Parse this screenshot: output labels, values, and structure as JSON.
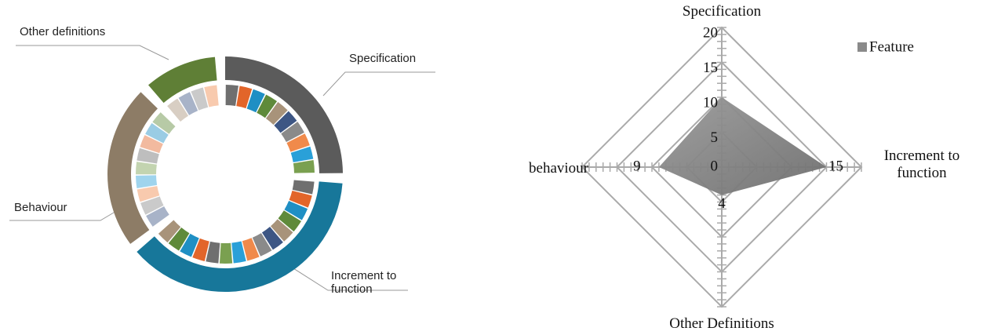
{
  "chart_data": [
    {
      "type": "donut",
      "categories": [
        "Specification",
        "Increment to function",
        "Behaviour",
        "Other definitions"
      ],
      "values": [
        10,
        15,
        9,
        4
      ],
      "colors": [
        "#5b5b5b",
        "#17779a",
        "#8d7c66",
        "#5f7f36"
      ],
      "inner_palette": [
        "#6f6f6f",
        "#e2652a",
        "#1f8fc4",
        "#5f8a3a",
        "#a8937a",
        "#3d5684",
        "#8a8a8a",
        "#f08a4b",
        "#2aa0d8",
        "#7aa050"
      ]
    },
    {
      "type": "radar",
      "categories": [
        "Specification",
        "Increment to function",
        "Other Definitions",
        "behaviour"
      ],
      "series": [
        {
          "name": "Feature",
          "color": "#8a8a8a",
          "values": [
            10,
            15,
            4,
            9
          ]
        }
      ],
      "rlim": [
        0,
        20
      ],
      "rticks": [
        0,
        5,
        10,
        15,
        20
      ],
      "grid": true,
      "legend": "top-right"
    }
  ]
}
